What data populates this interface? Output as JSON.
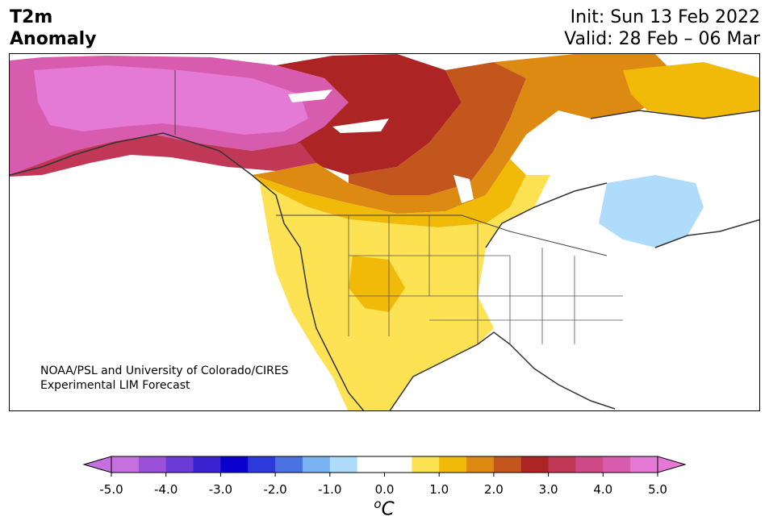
{
  "header": {
    "variable_line1": "T2m",
    "variable_line2": "Anomaly",
    "init_line": "Init: Sun 13 Feb 2022",
    "valid_line": "Valid: 28 Feb – 06 Mar"
  },
  "credit": {
    "line1": "NOAA/PSL and University of Colorado/CIRES",
    "line2": "Experimental LIM Forecast"
  },
  "colorbar": {
    "unit_base": "C",
    "unit_sup": "o",
    "ticks": [
      "-5.0",
      "-4.0",
      "-3.0",
      "-2.0",
      "-1.0",
      "0.0",
      "1.0",
      "2.0",
      "3.0",
      "4.0",
      "5.0"
    ],
    "bins": [
      {
        "color": "#c670e0"
      },
      {
        "color": "#9b50d8"
      },
      {
        "color": "#6a3ad6"
      },
      {
        "color": "#3a22d0"
      },
      {
        "color": "#0a02cc"
      },
      {
        "color": "#2b3ad8"
      },
      {
        "color": "#4a72e0"
      },
      {
        "color": "#78b2f0"
      },
      {
        "color": "#aedcfa"
      },
      {
        "color": "#ffffff"
      },
      {
        "color": "#ffffff"
      },
      {
        "color": "#fde254"
      },
      {
        "color": "#f1b908"
      },
      {
        "color": "#dc8a12"
      },
      {
        "color": "#c2561c"
      },
      {
        "color": "#ac2424"
      },
      {
        "color": "#c03855"
      },
      {
        "color": "#cd4a86"
      },
      {
        "color": "#d85cae"
      },
      {
        "color": "#e57ad6"
      }
    ],
    "under_color": "#c670e0",
    "over_color": "#e57ad6"
  }
}
